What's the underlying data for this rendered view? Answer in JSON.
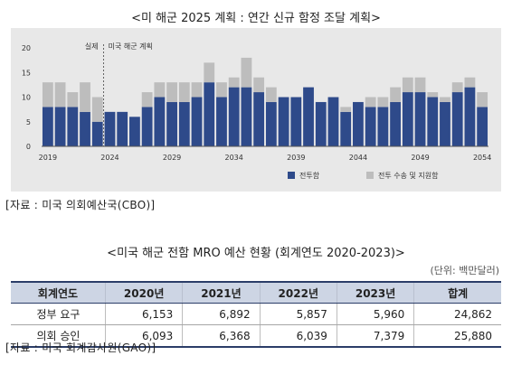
{
  "chart_title": "<미 해군 2025 계획 : 연간 신규 함정 조달 계획>",
  "chart_source": "[자료 : 미국 의회예산국(CBO)]",
  "chart_data": {
    "type": "bar",
    "stacked": true,
    "x": [
      2019,
      2020,
      2021,
      2022,
      2023,
      2024,
      2025,
      2026,
      2027,
      2028,
      2029,
      2030,
      2031,
      2032,
      2033,
      2034,
      2035,
      2036,
      2037,
      2038,
      2039,
      2040,
      2041,
      2042,
      2043,
      2044,
      2045,
      2046,
      2047,
      2048,
      2049,
      2050,
      2051,
      2052,
      2053,
      2054
    ],
    "xticks": [
      "2019",
      "2024",
      "2029",
      "2034",
      "2039",
      "2044",
      "2049",
      "2054"
    ],
    "yticks": [
      "20",
      "15",
      "10",
      "5",
      "0"
    ],
    "ylim": [
      0,
      20
    ],
    "annotations": {
      "actual": "실제",
      "plan": "미국 해군 계획"
    },
    "series": [
      {
        "name": "전투함",
        "color": "#2e4a8a",
        "values": [
          8,
          8,
          8,
          7,
          5,
          7,
          7,
          6,
          8,
          10,
          9,
          9,
          10,
          13,
          10,
          12,
          12,
          11,
          9,
          10,
          10,
          12,
          9,
          10,
          7,
          9,
          8,
          8,
          9,
          11,
          11,
          10,
          9,
          11,
          12,
          8
        ]
      },
      {
        "name": "전투 수송 및 지원함",
        "color": "#bdbdbd",
        "values": [
          5,
          5,
          3,
          6,
          5,
          0,
          0,
          0,
          3,
          3,
          4,
          4,
          3,
          4,
          3,
          2,
          6,
          3,
          3,
          0,
          0,
          0,
          0,
          0,
          1,
          0,
          2,
          2,
          3,
          3,
          3,
          1,
          1,
          2,
          2,
          3
        ]
      }
    ],
    "legend_position": "bottom-right"
  },
  "table_title": "<미국 해군 전함 MRO 예산 현황 (회계연도 2020-2023)>",
  "table_unit": "(단위: 백만달러)",
  "table": {
    "headers": [
      "회계연도",
      "2020년",
      "2021년",
      "2022년",
      "2023년",
      "합계"
    ],
    "rows": [
      [
        "정부 요구",
        "6,153",
        "6,892",
        "5,857",
        "5,960",
        "24,862"
      ],
      [
        "의회 승인",
        "6,093",
        "6,368",
        "6,039",
        "7,379",
        "25,880"
      ]
    ]
  },
  "table_source": "[자료 : 미국 회계감사원(GAO)]"
}
